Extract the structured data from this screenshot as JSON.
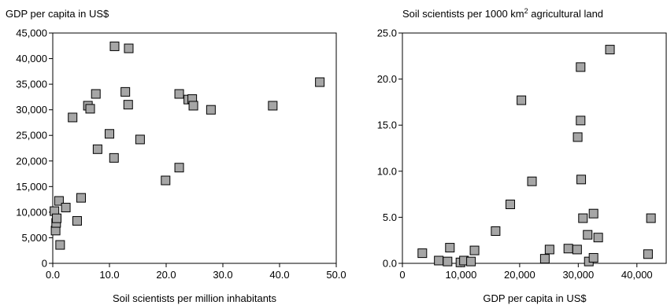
{
  "chart_data": [
    {
      "type": "scatter",
      "title": "GDP per capita in US$",
      "xlabel": "Soil scientists per million inhabitants",
      "ylabel": "",
      "xlim": [
        0,
        50
      ],
      "ylim": [
        0,
        45000
      ],
      "xticks": [
        "0.0",
        "10.0",
        "20.0",
        "30.0",
        "40.0",
        "50.0"
      ],
      "yticks": [
        "0",
        "5,000",
        "10,000",
        "15,000",
        "20,000",
        "25,000",
        "30,000",
        "35,000",
        "40,000",
        "45,000"
      ],
      "grid": false,
      "marker": "square",
      "marker_color": "#a6a6a6",
      "points": [
        {
          "x": 0.3,
          "y": 10200
        },
        {
          "x": 0.5,
          "y": 6400
        },
        {
          "x": 0.6,
          "y": 7900
        },
        {
          "x": 0.7,
          "y": 8800
        },
        {
          "x": 1.1,
          "y": 12200
        },
        {
          "x": 1.3,
          "y": 3600
        },
        {
          "x": 2.3,
          "y": 10900
        },
        {
          "x": 3.5,
          "y": 28500
        },
        {
          "x": 4.3,
          "y": 8300
        },
        {
          "x": 5.0,
          "y": 12800
        },
        {
          "x": 6.2,
          "y": 30800
        },
        {
          "x": 6.6,
          "y": 30200
        },
        {
          "x": 7.6,
          "y": 33100
        },
        {
          "x": 7.9,
          "y": 22300
        },
        {
          "x": 10.0,
          "y": 25300
        },
        {
          "x": 10.8,
          "y": 20600
        },
        {
          "x": 10.9,
          "y": 42400
        },
        {
          "x": 12.8,
          "y": 33500
        },
        {
          "x": 13.3,
          "y": 31000
        },
        {
          "x": 13.4,
          "y": 42000
        },
        {
          "x": 15.4,
          "y": 24200
        },
        {
          "x": 19.9,
          "y": 16200
        },
        {
          "x": 22.3,
          "y": 18700
        },
        {
          "x": 22.3,
          "y": 33100
        },
        {
          "x": 23.9,
          "y": 32000
        },
        {
          "x": 24.6,
          "y": 32100
        },
        {
          "x": 24.8,
          "y": 30800
        },
        {
          "x": 27.9,
          "y": 30000
        },
        {
          "x": 38.8,
          "y": 30800
        },
        {
          "x": 47.1,
          "y": 35400
        }
      ]
    },
    {
      "type": "scatter",
      "title_parts": [
        "Soil scientists per 1000 km",
        "2",
        " agricultural land"
      ],
      "xlabel": "GDP per capita in US$",
      "ylabel": "",
      "xlim": [
        0,
        45000
      ],
      "ylim": [
        0,
        25
      ],
      "xticks": [
        "0",
        "10,000",
        "20,000",
        "30,000",
        "40,000"
      ],
      "yticks": [
        "0.0",
        "5.0",
        "10.0",
        "15.0",
        "20.0",
        "25.0"
      ],
      "grid": false,
      "marker": "square",
      "marker_color": "#a6a6a6",
      "points": [
        {
          "x": 3400,
          "y": 1.1
        },
        {
          "x": 6200,
          "y": 0.3
        },
        {
          "x": 7700,
          "y": 0.2
        },
        {
          "x": 8100,
          "y": 1.7
        },
        {
          "x": 9900,
          "y": 0.1
        },
        {
          "x": 10500,
          "y": 0.3
        },
        {
          "x": 11700,
          "y": 0.2
        },
        {
          "x": 12300,
          "y": 1.4
        },
        {
          "x": 15900,
          "y": 3.5
        },
        {
          "x": 18400,
          "y": 6.4
        },
        {
          "x": 20300,
          "y": 17.7
        },
        {
          "x": 22100,
          "y": 8.9
        },
        {
          "x": 24300,
          "y": 0.5
        },
        {
          "x": 25100,
          "y": 1.5
        },
        {
          "x": 28300,
          "y": 1.6
        },
        {
          "x": 29800,
          "y": 1.5
        },
        {
          "x": 29900,
          "y": 13.7
        },
        {
          "x": 30400,
          "y": 21.3
        },
        {
          "x": 30400,
          "y": 15.5
        },
        {
          "x": 30500,
          "y": 9.1
        },
        {
          "x": 30800,
          "y": 4.9
        },
        {
          "x": 31600,
          "y": 3.1
        },
        {
          "x": 31800,
          "y": 0.2
        },
        {
          "x": 32600,
          "y": 0.6
        },
        {
          "x": 32600,
          "y": 5.4
        },
        {
          "x": 33400,
          "y": 2.8
        },
        {
          "x": 35400,
          "y": 23.2
        },
        {
          "x": 41900,
          "y": 1.0
        },
        {
          "x": 42400,
          "y": 4.9
        }
      ]
    }
  ]
}
